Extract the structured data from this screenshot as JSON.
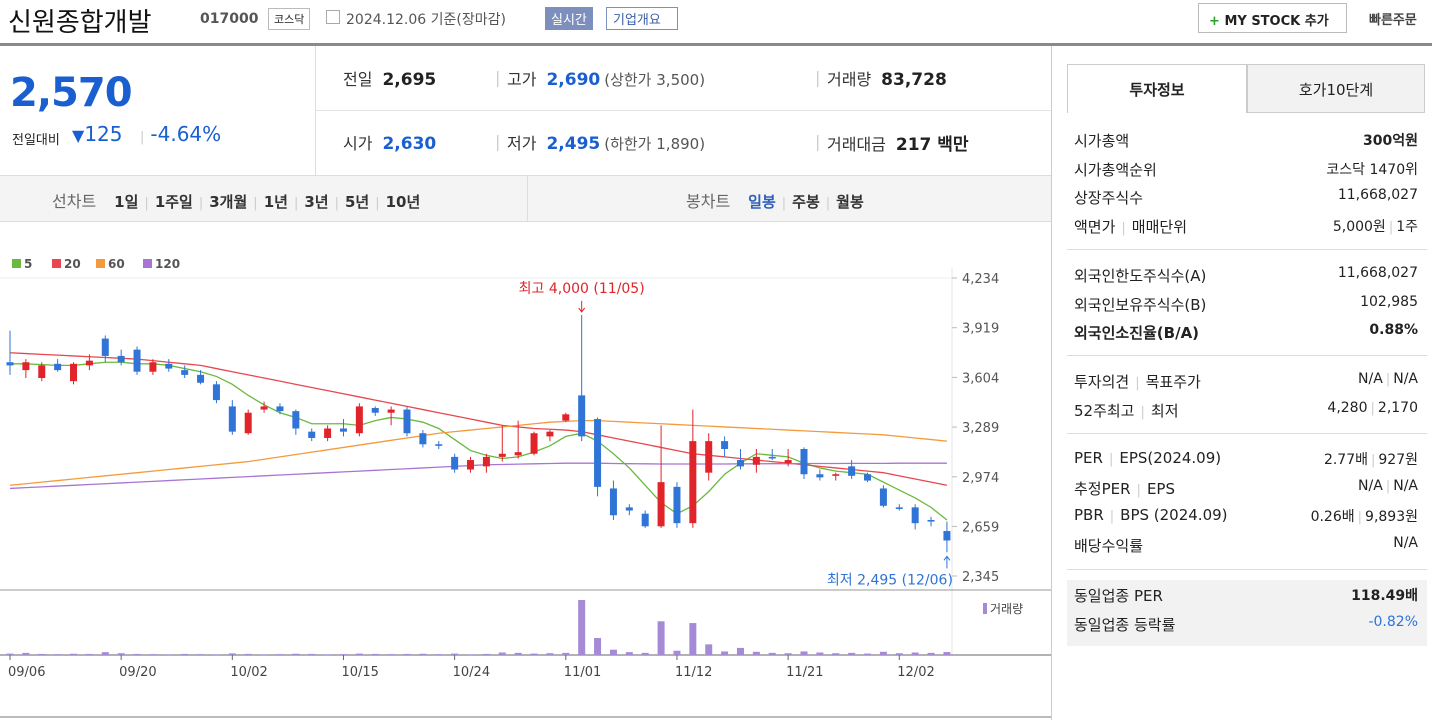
{
  "header": {
    "name": "신원종합개발",
    "code": "017000",
    "market": "코스닥",
    "date": "2024.12.06 기준(장마감)",
    "realtime": "실시간",
    "overview": "기업개요",
    "my_stock": "MY STOCK 추가",
    "quick_order": "빠른주문"
  },
  "price": {
    "current": "2,570",
    "change_label": "전일대비",
    "change": "125",
    "change_pct": "-4.64%"
  },
  "quote": [
    [
      {
        "label": "전일",
        "value": "2,695"
      },
      {
        "label": "고가",
        "value": "2,690",
        "note": "(상한가 3,500)"
      },
      {
        "label": "거래량",
        "value": "83,728"
      }
    ],
    [
      {
        "label": "시가",
        "value": "2,630"
      },
      {
        "label": "저가",
        "value": "2,495",
        "note": "(하한가 1,890)"
      },
      {
        "label": "거래대금",
        "value": "217 백만"
      }
    ]
  ],
  "periods": {
    "line_label": "선차트",
    "line": [
      "1일",
      "1주일",
      "3개월",
      "1년",
      "3년",
      "5년",
      "10년"
    ],
    "candle_label": "봉차트",
    "candle": [
      "일봉",
      "주봉",
      "월봉"
    ]
  },
  "chart_data": {
    "type": "candlestick",
    "categories": [
      "09/06",
      null,
      null,
      null,
      null,
      null,
      null,
      "09/20",
      null,
      null,
      null,
      null,
      null,
      null,
      "10/02",
      null,
      null,
      null,
      null,
      null,
      null,
      "10/15",
      null,
      null,
      null,
      null,
      null,
      null,
      "10/24",
      null,
      null,
      null,
      null,
      null,
      null,
      "11/01",
      null,
      null,
      null,
      null,
      null,
      null,
      "11/12",
      null,
      null,
      null,
      null,
      null,
      null,
      "11/21",
      null,
      null,
      null,
      null,
      null,
      null,
      "12/02",
      null,
      null,
      null
    ],
    "open": [
      3700,
      3650,
      3600,
      3690,
      3580,
      3680,
      3850,
      3740,
      3780,
      3640,
      3690,
      3650,
      3620,
      3560,
      3420,
      3250,
      3400,
      3420,
      3390,
      3260,
      3220,
      3280,
      3250,
      3410,
      3380,
      3400,
      3250,
      3180,
      3100,
      3020,
      3040,
      3100,
      3110,
      3120,
      3230,
      3330,
      3490,
      3340,
      2900,
      2780,
      2740,
      2660,
      2910,
      2680,
      3000,
      3200,
      3080,
      3050,
      3100,
      3060,
      3150,
      2990,
      2980,
      3040,
      2990,
      2900,
      2780,
      2780,
      2700,
      2630
    ],
    "high": [
      3900,
      3720,
      3700,
      3720,
      3700,
      3750,
      3870,
      3780,
      3800,
      3720,
      3720,
      3680,
      3650,
      3580,
      3460,
      3400,
      3450,
      3440,
      3400,
      3280,
      3300,
      3340,
      3440,
      3420,
      3420,
      3420,
      3270,
      3200,
      3120,
      3100,
      3120,
      3300,
      3330,
      3260,
      3270,
      3380,
      4000,
      3350,
      2950,
      2800,
      2760,
      3300,
      2940,
      3400,
      3250,
      3230,
      3150,
      3150,
      3150,
      3150,
      3160,
      3020,
      3000,
      3080,
      3000,
      2920,
      2800,
      2800,
      2720,
      2690
    ],
    "low": [
      3620,
      3600,
      3580,
      3640,
      3560,
      3650,
      3700,
      3680,
      3620,
      3620,
      3640,
      3600,
      3560,
      3440,
      3240,
      3240,
      3380,
      3370,
      3240,
      3200,
      3200,
      3230,
      3230,
      3360,
      3300,
      3230,
      3160,
      3150,
      3000,
      3000,
      3000,
      3070,
      3090,
      3110,
      3200,
      3320,
      3200,
      2850,
      2700,
      2730,
      2650,
      2650,
      2650,
      2650,
      2950,
      3100,
      3020,
      3000,
      3080,
      3040,
      2960,
      2950,
      2950,
      2960,
      2940,
      2780,
      2760,
      2640,
      2660,
      2495
    ],
    "close": [
      3680,
      3700,
      3680,
      3650,
      3690,
      3710,
      3740,
      3700,
      3640,
      3700,
      3660,
      3620,
      3570,
      3460,
      3260,
      3380,
      3420,
      3390,
      3280,
      3220,
      3280,
      3260,
      3420,
      3380,
      3400,
      3250,
      3180,
      3170,
      3020,
      3080,
      3100,
      3120,
      3130,
      3250,
      3260,
      3370,
      3230,
      2910,
      2730,
      2760,
      2660,
      2940,
      2680,
      3200,
      3200,
      3150,
      3040,
      3100,
      3090,
      3080,
      2990,
      2970,
      2990,
      2980,
      2950,
      2790,
      2770,
      2680,
      2690,
      2570
    ],
    "ma": [
      {
        "name": "5",
        "color": "#69b93e",
        "values": [
          3690,
          3690,
          3685,
          3680,
          3680,
          3690,
          3700,
          3700,
          3690,
          3690,
          3680,
          3660,
          3640,
          3610,
          3560,
          3490,
          3430,
          3380,
          3350,
          3310,
          3310,
          3310,
          3300,
          3330,
          3350,
          3340,
          3320,
          3280,
          3210,
          3140,
          3110,
          3090,
          3100,
          3130,
          3170,
          3230,
          3250,
          3200,
          3120,
          3030,
          2920,
          2810,
          2740,
          2790,
          2880,
          2990,
          3060,
          3120,
          3110,
          3100,
          3060,
          3030,
          3010,
          3000,
          2990,
          2940,
          2890,
          2840,
          2780,
          2700
        ]
      },
      {
        "name": "20",
        "color": "#e8474f",
        "values": [
          3760,
          3755,
          3750,
          3745,
          3740,
          3735,
          3730,
          3725,
          3720,
          3710,
          3700,
          3690,
          3680,
          3660,
          3640,
          3620,
          3600,
          3580,
          3560,
          3540,
          3520,
          3500,
          3480,
          3460,
          3440,
          3420,
          3400,
          3380,
          3360,
          3340,
          3320,
          3300,
          3290,
          3280,
          3275,
          3270,
          3260,
          3240,
          3220,
          3200,
          3180,
          3160,
          3140,
          3120,
          3110,
          3100,
          3090,
          3080,
          3070,
          3060,
          3050,
          3040,
          3030,
          3020,
          3010,
          3000,
          2980,
          2960,
          2940,
          2920
        ]
      },
      {
        "name": "60",
        "color": "#f39a3c",
        "values": [
          2920,
          2930,
          2940,
          2950,
          2960,
          2970,
          2980,
          2990,
          3000,
          3010,
          3020,
          3030,
          3040,
          3050,
          3060,
          3070,
          3085,
          3100,
          3115,
          3130,
          3145,
          3160,
          3175,
          3190,
          3205,
          3220,
          3235,
          3250,
          3260,
          3270,
          3280,
          3290,
          3300,
          3310,
          3320,
          3325,
          3330,
          3330,
          3325,
          3320,
          3315,
          3310,
          3305,
          3300,
          3295,
          3290,
          3285,
          3280,
          3275,
          3270,
          3265,
          3260,
          3255,
          3250,
          3245,
          3240,
          3230,
          3220,
          3210,
          3200
        ]
      },
      {
        "name": "120",
        "color": "#a974d4",
        "values": [
          2900,
          2905,
          2910,
          2915,
          2920,
          2925,
          2930,
          2935,
          2940,
          2945,
          2950,
          2955,
          2960,
          2965,
          2970,
          2975,
          2980,
          2985,
          2990,
          2995,
          3000,
          3005,
          3010,
          3015,
          3020,
          3025,
          3030,
          3035,
          3040,
          3045,
          3050,
          3052,
          3054,
          3056,
          3058,
          3060,
          3060,
          3060,
          3058,
          3057,
          3056,
          3055,
          3055,
          3055,
          3055,
          3055,
          3056,
          3056,
          3057,
          3057,
          3058,
          3058,
          3058,
          3059,
          3059,
          3059,
          3060,
          3060,
          3060,
          3060
        ]
      }
    ],
    "volume": {
      "name": "거래량",
      "color": "#a58ad6",
      "values": [
        40000,
        60000,
        30000,
        25000,
        35000,
        30000,
        80000,
        50000,
        30000,
        25000,
        20000,
        30000,
        25000,
        20000,
        45000,
        30000,
        20000,
        25000,
        35000,
        30000,
        20000,
        25000,
        40000,
        30000,
        25000,
        30000,
        35000,
        25000,
        40000,
        20000,
        30000,
        70000,
        60000,
        40000,
        50000,
        60000,
        1550000,
        480000,
        150000,
        80000,
        60000,
        950000,
        120000,
        900000,
        300000,
        100000,
        200000,
        90000,
        60000,
        50000,
        100000,
        70000,
        50000,
        60000,
        40000,
        90000,
        50000,
        70000,
        60000,
        83728
      ]
    },
    "up_color": "#e0242a",
    "down_color": "#2f74d6",
    "ylim": [
      2345,
      4234
    ],
    "yticks": [
      {
        "value": 4234,
        "label": "4,234"
      },
      {
        "value": 3919,
        "label": "3,919"
      },
      {
        "value": 3604,
        "label": "3,604"
      },
      {
        "value": 3289,
        "label": "3,289"
      },
      {
        "value": 2974,
        "label": "2,974"
      },
      {
        "value": 2659,
        "label": "2,659"
      },
      {
        "value": 2345,
        "label": "2,345"
      }
    ],
    "annotations": {
      "high": "최고 4,000 (11/05)",
      "low": "최저 2,495 (12/06)"
    }
  },
  "sidebar": {
    "tabs": [
      "투자정보",
      "호가10단계"
    ],
    "groups": [
      [
        {
          "label": [
            "시가총액"
          ],
          "value": [
            "300억원"
          ]
        },
        {
          "label": [
            "시가총액순위"
          ],
          "value": [
            "코스닥 1470위"
          ]
        },
        {
          "label": [
            "상장주식수"
          ],
          "value": [
            "11,668,027"
          ]
        },
        {
          "label": [
            "액면가",
            "매매단위"
          ],
          "value": [
            "5,000원",
            "1주"
          ]
        }
      ],
      [
        {
          "label": [
            "외국인한도주식수(A)"
          ],
          "value": [
            "11,668,027"
          ]
        },
        {
          "label": [
            "외국인보유주식수(B)"
          ],
          "value": [
            "102,985"
          ]
        },
        {
          "label": [
            "외국인소진율(B/A)"
          ],
          "value": [
            "0.88%"
          ]
        }
      ],
      [
        {
          "label": [
            "투자의견",
            "목표주가"
          ],
          "value": [
            "N/A",
            "N/A"
          ]
        },
        {
          "label": [
            "52주최고",
            "최저"
          ],
          "value": [
            "4,280",
            "2,170"
          ]
        }
      ],
      [
        {
          "label": [
            "PER",
            "EPS(2024.09)"
          ],
          "value": [
            "2.77배",
            "927원"
          ]
        },
        {
          "label": [
            "추정PER",
            "EPS"
          ],
          "value": [
            "N/A",
            "N/A"
          ]
        },
        {
          "label": [
            "PBR",
            "BPS (2024.09)"
          ],
          "value": [
            "0.26배",
            "9,893원"
          ]
        },
        {
          "label": [
            "배당수익률"
          ],
          "value": [
            "N/A"
          ]
        }
      ],
      [
        {
          "label": [
            "동일업종 PER"
          ],
          "value": [
            "118.49배"
          ]
        },
        {
          "label": [
            "동일업종 등락률"
          ],
          "value": [
            "-0.82%"
          ]
        }
      ]
    ]
  }
}
